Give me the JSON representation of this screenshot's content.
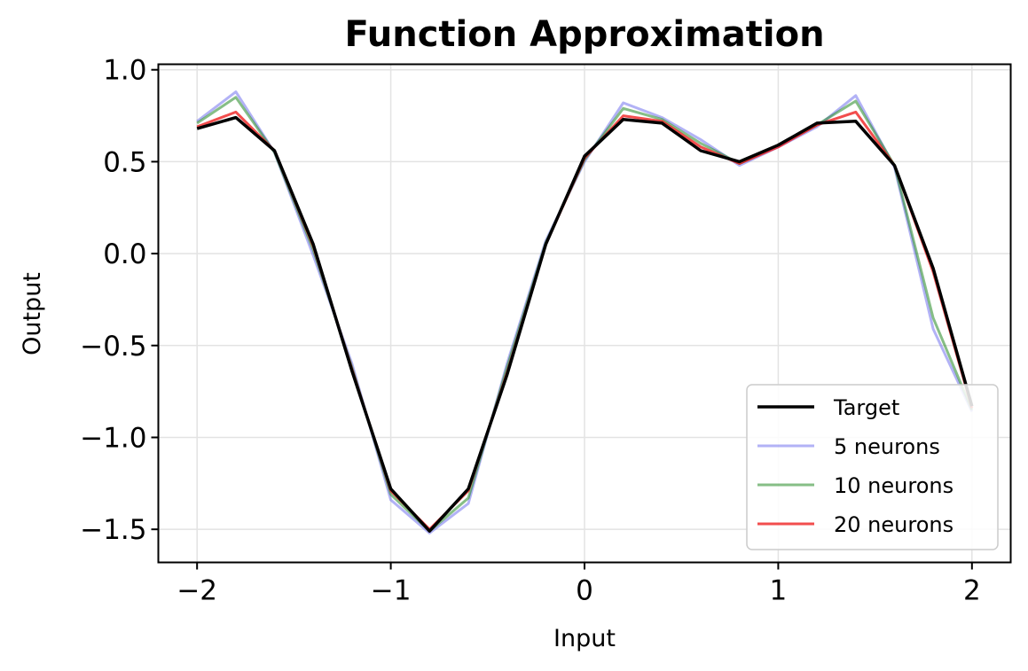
{
  "chart_data": {
    "type": "line",
    "title": "Function Approximation",
    "xlabel": "Input",
    "ylabel": "Output",
    "xlim": [
      -2.2,
      2.2
    ],
    "ylim": [
      -1.68,
      1.03
    ],
    "xticks": [
      -2,
      -1,
      0,
      1,
      2
    ],
    "xtick_labels": [
      "−2",
      "−1",
      "0",
      "1",
      "2"
    ],
    "yticks": [
      -1.5,
      -1.0,
      -0.5,
      0.0,
      0.5,
      1.0
    ],
    "ytick_labels": [
      "−1.5",
      "−1.0",
      "−0.5",
      "0.0",
      "0.5",
      "1.0"
    ],
    "grid": true,
    "legend_position": "lower-right",
    "x": [
      -2.0,
      -1.8,
      -1.6,
      -1.4,
      -1.2,
      -1.0,
      -0.8,
      -0.6,
      -0.4,
      -0.2,
      0.0,
      0.2,
      0.4,
      0.6,
      0.8,
      1.0,
      1.2,
      1.4,
      1.6,
      1.8,
      2.0
    ],
    "series": [
      {
        "name": "Target",
        "color": "#000000",
        "values": [
          0.68,
          0.74,
          0.56,
          0.05,
          -0.64,
          -1.28,
          -1.51,
          -1.28,
          -0.66,
          0.05,
          0.53,
          0.73,
          0.71,
          0.56,
          0.5,
          0.59,
          0.71,
          0.72,
          0.48,
          -0.08,
          -0.83
        ]
      },
      {
        "name": "5 neurons",
        "color": "#6666ee",
        "values": [
          0.72,
          0.88,
          0.55,
          -0.01,
          -0.6,
          -1.34,
          -1.52,
          -1.36,
          -0.6,
          0.07,
          0.5,
          0.82,
          0.74,
          0.62,
          0.48,
          0.58,
          0.69,
          0.86,
          0.47,
          -0.41,
          -0.86
        ]
      },
      {
        "name": "10 neurons",
        "color": "#228822",
        "values": [
          0.71,
          0.85,
          0.55,
          0.02,
          -0.62,
          -1.31,
          -1.51,
          -1.33,
          -0.62,
          0.06,
          0.51,
          0.79,
          0.73,
          0.6,
          0.49,
          0.59,
          0.7,
          0.83,
          0.48,
          -0.35,
          -0.85
        ]
      },
      {
        "name": "20 neurons",
        "color": "#ee1111",
        "values": [
          0.69,
          0.77,
          0.56,
          0.04,
          -0.63,
          -1.29,
          -1.5,
          -1.29,
          -0.65,
          0.05,
          0.52,
          0.75,
          0.72,
          0.58,
          0.49,
          0.58,
          0.7,
          0.77,
          0.48,
          -0.1,
          -0.84
        ]
      }
    ]
  }
}
